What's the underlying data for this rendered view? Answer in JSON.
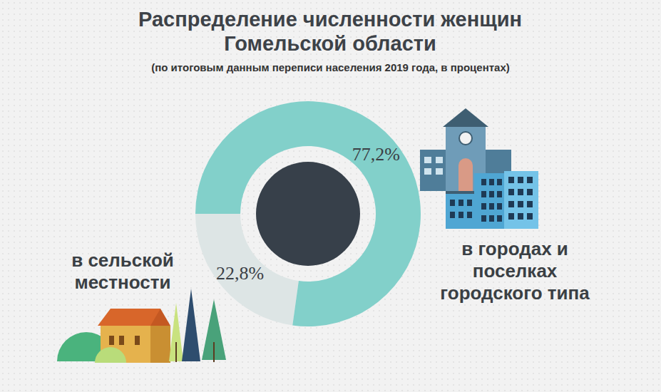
{
  "chart_data": {
    "type": "pie",
    "title": "Распределение численности женщин Гомельской области",
    "subtitle": "(по итоговым данным переписи населения 2019 года, в процентах)",
    "categories": [
      "в сельской местности",
      "в городах и поселках городского типа"
    ],
    "values": [
      22.8,
      77.2
    ],
    "value_labels": [
      "22,8%",
      "77,2%"
    ],
    "colors": [
      "#dde5e5",
      "#82d0ca"
    ],
    "data_labels": true
  }
}
